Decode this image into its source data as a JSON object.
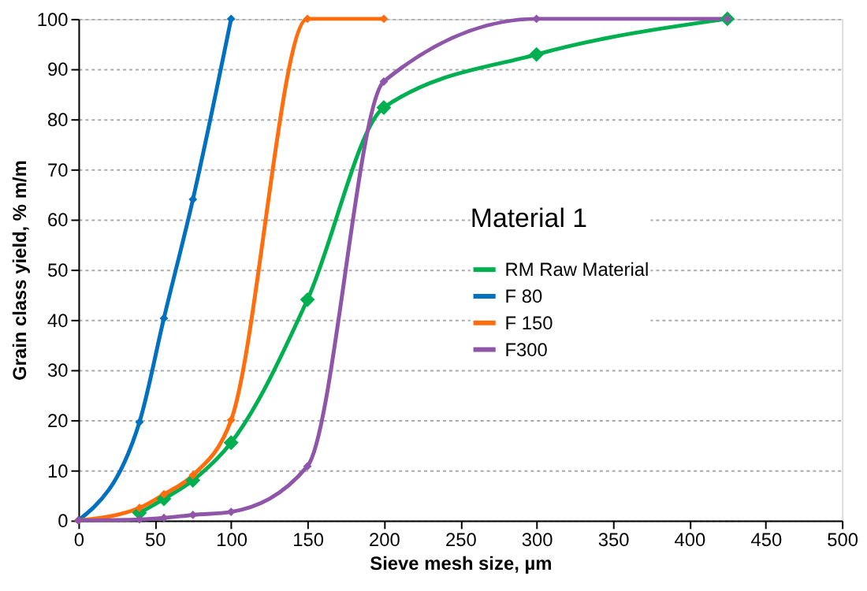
{
  "chart_data": {
    "type": "line",
    "xlabel": "Sieve mesh size, µm",
    "ylabel": "Grain class yield,  % m/m",
    "legend_title": "Material 1",
    "series": [
      {
        "name": "RM Raw Material",
        "color": "#00b050",
        "x": [
          40,
          56,
          75,
          100,
          150,
          200,
          300,
          425
        ],
        "values": [
          1.5,
          4.3,
          8,
          15.5,
          44,
          82.3,
          92.9,
          100
        ]
      },
      {
        "name": "F 80",
        "color": "#0070c0",
        "x": [
          0,
          40,
          56,
          75,
          100
        ],
        "values": [
          0,
          19.6,
          40.3,
          64,
          100
        ]
      },
      {
        "name": "F 150",
        "color": "#ff6d0d",
        "x": [
          0,
          40,
          56,
          75,
          100,
          150,
          200
        ],
        "values": [
          0,
          2.5,
          5.2,
          9,
          20,
          100,
          100
        ]
      },
      {
        "name": "F300",
        "color": "#8e55a8",
        "x": [
          0,
          40,
          56,
          75,
          100,
          150,
          200,
          300,
          425
        ],
        "values": [
          0,
          0.2,
          0.5,
          1.1,
          1.7,
          10.8,
          87.5,
          100,
          100
        ]
      }
    ],
    "xlim": [
      0,
      500
    ],
    "xticks": [
      0,
      50,
      100,
      150,
      200,
      250,
      300,
      350,
      400,
      450,
      500
    ],
    "ylim": [
      0,
      100
    ],
    "yticks": [
      0,
      10,
      20,
      30,
      40,
      50,
      60,
      70,
      80,
      90,
      100
    ],
    "grid": "y",
    "legend": "right",
    "marker": "diamond",
    "line_style": "solid"
  }
}
